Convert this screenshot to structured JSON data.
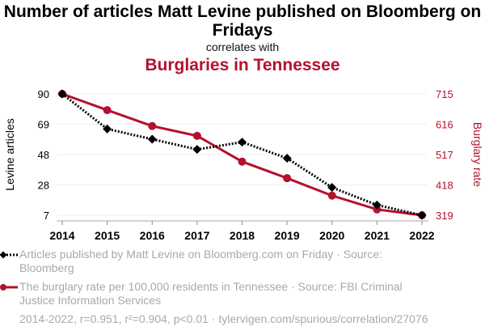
{
  "header": {
    "title": "Number of articles Matt Levine published on Bloomberg on Fridays",
    "subtitle": "correlates with",
    "title2": "Burglaries in Tennessee"
  },
  "colors": {
    "series1": "#000000",
    "series2": "#b5112e",
    "grid": "#eeeeee",
    "legend_text": "#a9a9a9"
  },
  "chart_data": {
    "type": "line",
    "title": "Number of articles Matt Levine published on Bloomberg on Fridays correlates with Burglaries in Tennessee",
    "x": [
      2014,
      2015,
      2016,
      2017,
      2018,
      2019,
      2020,
      2021,
      2022
    ],
    "x_tick_labels": [
      "2014",
      "2015",
      "2016",
      "2017",
      "2018",
      "2019",
      "2020",
      "2021",
      "2022"
    ],
    "ylabel_left": "Levine articles",
    "ylabel_right": "Burglary rate",
    "y_left_ticks": [
      "90",
      "69",
      "48",
      "28",
      "7"
    ],
    "y_right_ticks": [
      "715",
      "616",
      "517",
      "418",
      "319"
    ],
    "ylim_left": [
      7,
      90
    ],
    "ylim_right": [
      319,
      715
    ],
    "grid": true,
    "legend_position": "bottom",
    "series": [
      {
        "name": "Articles published by Matt Levine on Bloomberg.com on Friday · Source: Bloomberg",
        "axis": "left",
        "style": "dotted",
        "marker": "diamond",
        "values": [
          90,
          66,
          59,
          52,
          57,
          46,
          26,
          14,
          7
        ]
      },
      {
        "name": "The burglary rate per 100,000 residents in Tennessee · Source: FBI Criminal Justice Information Services",
        "axis": "right",
        "style": "solid",
        "marker": "circle",
        "values": [
          715,
          662,
          610,
          578,
          494,
          440,
          383,
          338,
          319
        ]
      }
    ]
  },
  "legend": {
    "items": [
      "Articles published by Matt Levine on Bloomberg.com on Friday · Source: Bloomberg",
      "The burglary rate per 100,000 residents in Tennessee · Source: FBI Criminal Justice Information Services"
    ]
  },
  "footer": {
    "text": "2014-2022, r=0.951, r²=0.904, p<0.01 · tylervigen.com/spurious/correlation/27076"
  }
}
